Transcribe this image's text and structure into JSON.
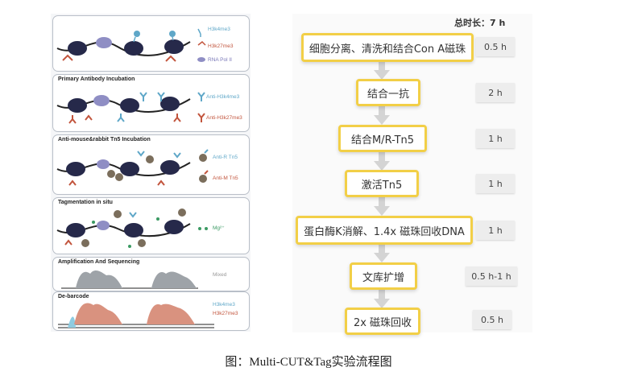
{
  "left_panel": {
    "panel1": {
      "legend": [
        "H3k4me3",
        "H3k27me3",
        "RNA Pol II"
      ]
    },
    "panel2": {
      "title": "Primary Antibody Incubation",
      "legend": [
        "Anti-H3k4me3",
        "Anti-H3k27me3"
      ]
    },
    "panel3": {
      "title": "Anti-mouse&rabbit Tn5 Incubation",
      "legend": [
        "Anti-R Tn5",
        "Anti-M Tn5"
      ]
    },
    "panel4": {
      "title": "Tagmentation in situ",
      "legend": [
        "Mg²⁺"
      ]
    },
    "panel5": {
      "title": "Amplification And Sequencing",
      "legend": [
        "Mixed"
      ]
    },
    "panel6": {
      "title": "De-barcode",
      "legend": [
        "H3k4me3",
        "H3k27me3"
      ]
    }
  },
  "right_panel": {
    "total_time": "总时长：7 h",
    "steps": [
      {
        "label": "细胞分离、清洗和结合Con A磁珠",
        "time": "0.5 h"
      },
      {
        "label": "结合一抗",
        "time": "2 h"
      },
      {
        "label": "结合M/R-Tn5",
        "time": "1 h"
      },
      {
        "label": "激活Tn5",
        "time": "1 h"
      },
      {
        "label": "蛋白酶K消解、1.4x 磁珠回收DNA",
        "time": "1 h"
      },
      {
        "label": "文库扩增",
        "time": "0.5 h-1 h"
      },
      {
        "label": "2x 磁珠回收",
        "time": "0.5 h"
      }
    ]
  },
  "caption": "图：Multi-CUT&Tag实验流程图",
  "colors": {
    "blue": "#5fa7c8",
    "red": "#c2553d",
    "purple": "#7a78b8",
    "navy": "#26294a",
    "yellow": "#f2cf47",
    "gray_peak": "#9ea3a8",
    "red_peak": "#d9927f"
  }
}
